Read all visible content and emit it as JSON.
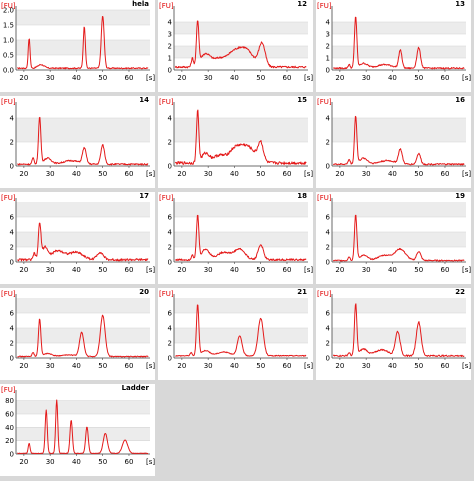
{
  "unit_fu": "[FU]",
  "unit_s": "[s]",
  "chart_data": [
    {
      "type": "line",
      "title": "hela",
      "ylim": [
        0,
        2.0
      ],
      "yticks": [
        "0.0",
        "0.5",
        "1.0",
        "1.5",
        "2.0"
      ],
      "xlim": [
        17,
        68
      ],
      "xticks": [
        "20",
        "30",
        "40",
        "50",
        "60"
      ],
      "baseline": 0.06,
      "noise": 0.02,
      "peaks": [
        [
          22,
          1.0,
          0.35
        ],
        [
          26.5,
          0.12,
          1.2
        ],
        [
          43,
          1.4,
          0.4
        ],
        [
          50,
          1.75,
          0.55
        ]
      ]
    },
    {
      "type": "line",
      "title": "12",
      "ylim": [
        0,
        5
      ],
      "yticks": [
        "0",
        "1",
        "2",
        "3",
        "4"
      ],
      "xlim": [
        17,
        68
      ],
      "xticks": [
        "20",
        "30",
        "40",
        "50",
        "60"
      ],
      "baseline": 0.25,
      "noise": 0.08,
      "peaks": [
        [
          24,
          0.7,
          0.4
        ],
        [
          26,
          3.6,
          0.45
        ],
        [
          29,
          1.1,
          2.0
        ],
        [
          34,
          0.6,
          2.0
        ],
        [
          39,
          0.9,
          2.5
        ],
        [
          44,
          1.5,
          3.0
        ],
        [
          50.5,
          1.9,
          1.2
        ]
      ]
    },
    {
      "type": "line",
      "title": "13",
      "ylim": [
        0,
        5
      ],
      "yticks": [
        "0",
        "1",
        "2",
        "3",
        "4"
      ],
      "xlim": [
        17,
        68
      ],
      "xticks": [
        "20",
        "30",
        "40",
        "50",
        "60"
      ],
      "baseline": 0.15,
      "noise": 0.06,
      "peaks": [
        [
          23.5,
          0.3,
          0.4
        ],
        [
          26,
          4.3,
          0.45
        ],
        [
          29,
          0.4,
          1.5
        ],
        [
          37,
          0.3,
          3.0
        ],
        [
          43,
          1.5,
          0.6
        ],
        [
          50,
          1.7,
          0.7
        ]
      ]
    },
    {
      "type": "line",
      "title": "14",
      "ylim": [
        0,
        5
      ],
      "yticks": [
        "0",
        "2",
        "4"
      ],
      "xlim": [
        17,
        68
      ],
      "xticks": [
        "20",
        "30",
        "40",
        "50",
        "60"
      ],
      "baseline": 0.15,
      "noise": 0.06,
      "peaks": [
        [
          23.5,
          0.5,
          0.4
        ],
        [
          26,
          3.9,
          0.45
        ],
        [
          29,
          0.5,
          1.5
        ],
        [
          38,
          0.3,
          3.0
        ],
        [
          43,
          1.3,
          0.7
        ],
        [
          50,
          1.6,
          0.7
        ]
      ]
    },
    {
      "type": "line",
      "title": "15",
      "ylim": [
        0,
        5
      ],
      "yticks": [
        "0",
        "2",
        "4"
      ],
      "xlim": [
        17,
        68
      ],
      "xticks": [
        "20",
        "30",
        "40",
        "50",
        "60"
      ],
      "baseline": 0.25,
      "noise": 0.12,
      "peaks": [
        [
          26,
          4.3,
          0.45
        ],
        [
          29,
          0.8,
          1.5
        ],
        [
          34,
          0.6,
          2.0
        ],
        [
          40,
          1.0,
          2.5
        ],
        [
          45,
          1.3,
          3.0
        ],
        [
          50,
          1.5,
          1.0
        ]
      ]
    },
    {
      "type": "line",
      "title": "16",
      "ylim": [
        0,
        5
      ],
      "yticks": [
        "0",
        "2",
        "4"
      ],
      "xlim": [
        17,
        68
      ],
      "xticks": [
        "20",
        "30",
        "40",
        "50",
        "60"
      ],
      "baseline": 0.15,
      "noise": 0.06,
      "peaks": [
        [
          23.5,
          0.4,
          0.4
        ],
        [
          26,
          4.0,
          0.45
        ],
        [
          29,
          0.5,
          1.5
        ],
        [
          38,
          0.3,
          3.0
        ],
        [
          43,
          1.2,
          0.7
        ],
        [
          50,
          0.9,
          0.7
        ]
      ]
    },
    {
      "type": "line",
      "title": "17",
      "ylim": [
        0,
        8
      ],
      "yticks": [
        "0",
        "2",
        "4",
        "6"
      ],
      "xlim": [
        17,
        68
      ],
      "xticks": [
        "20",
        "30",
        "40",
        "50",
        "60"
      ],
      "baseline": 0.3,
      "noise": 0.15,
      "peaks": [
        [
          24,
          0.9,
          0.4
        ],
        [
          26,
          4.7,
          0.5
        ],
        [
          28,
          1.6,
          1.0
        ],
        [
          33,
          1.2,
          2.5
        ],
        [
          40,
          1.0,
          2.5
        ],
        [
          49,
          1.0,
          1.2
        ]
      ]
    },
    {
      "type": "line",
      "title": "18",
      "ylim": [
        0,
        8
      ],
      "yticks": [
        "0",
        "2",
        "4",
        "6"
      ],
      "xlim": [
        17,
        68
      ],
      "xticks": [
        "20",
        "30",
        "40",
        "50",
        "60"
      ],
      "baseline": 0.3,
      "noise": 0.12,
      "peaks": [
        [
          24,
          0.7,
          0.4
        ],
        [
          26,
          5.8,
          0.45
        ],
        [
          29,
          1.4,
          1.5
        ],
        [
          36,
          1.0,
          2.5
        ],
        [
          42,
          1.4,
          2.0
        ],
        [
          50,
          2.0,
          1.0
        ]
      ]
    },
    {
      "type": "line",
      "title": "19",
      "ylim": [
        0,
        8
      ],
      "yticks": [
        "0",
        "2",
        "4",
        "6"
      ],
      "xlim": [
        17,
        68
      ],
      "xticks": [
        "20",
        "30",
        "40",
        "50",
        "60"
      ],
      "baseline": 0.2,
      "noise": 0.08,
      "peaks": [
        [
          23.5,
          0.5,
          0.4
        ],
        [
          26,
          6.0,
          0.45
        ],
        [
          29,
          0.7,
          1.5
        ],
        [
          37,
          0.7,
          2.5
        ],
        [
          43,
          1.5,
          2.0
        ],
        [
          50,
          1.2,
          0.8
        ]
      ]
    },
    {
      "type": "line",
      "title": "20",
      "ylim": [
        0,
        8
      ],
      "yticks": [
        "0",
        "2",
        "4",
        "6"
      ],
      "xlim": [
        17,
        68
      ],
      "xticks": [
        "20",
        "30",
        "40",
        "50",
        "60"
      ],
      "baseline": 0.2,
      "noise": 0.06,
      "peaks": [
        [
          23.5,
          0.5,
          0.4
        ],
        [
          26,
          5.0,
          0.45
        ],
        [
          29,
          0.4,
          1.5
        ],
        [
          37,
          0.2,
          3.0
        ],
        [
          42,
          3.2,
          0.8
        ],
        [
          50,
          5.5,
          0.9
        ]
      ]
    },
    {
      "type": "line",
      "title": "21",
      "ylim": [
        0,
        8
      ],
      "yticks": [
        "0",
        "2",
        "4",
        "6"
      ],
      "xlim": [
        17,
        68
      ],
      "xticks": [
        "20",
        "30",
        "40",
        "50",
        "60"
      ],
      "baseline": 0.3,
      "noise": 0.06,
      "peaks": [
        [
          23.5,
          0.4,
          0.4
        ],
        [
          26,
          6.8,
          0.45
        ],
        [
          29,
          0.7,
          1.5
        ],
        [
          36,
          0.5,
          2.5
        ],
        [
          42,
          2.6,
          0.9
        ],
        [
          50,
          5.0,
          1.0
        ]
      ]
    },
    {
      "type": "line",
      "title": "22",
      "ylim": [
        0,
        8
      ],
      "yticks": [
        "0",
        "2",
        "4",
        "6"
      ],
      "xlim": [
        17,
        68
      ],
      "xticks": [
        "20",
        "30",
        "40",
        "50",
        "60"
      ],
      "baseline": 0.3,
      "noise": 0.1,
      "peaks": [
        [
          23.5,
          0.4,
          0.4
        ],
        [
          26,
          6.9,
          0.45
        ],
        [
          29,
          0.9,
          1.5
        ],
        [
          36,
          0.8,
          2.5
        ],
        [
          42,
          3.2,
          0.9
        ],
        [
          50,
          4.5,
          0.9
        ]
      ]
    },
    {
      "type": "line",
      "title": "Ladder",
      "ylim": [
        0,
        90
      ],
      "yticks": [
        "0",
        "20",
        "40",
        "60",
        "80"
      ],
      "xlim": [
        17,
        68
      ],
      "xticks": [
        "20",
        "30",
        "40",
        "50",
        "60"
      ],
      "baseline": 1.0,
      "noise": 0.3,
      "peaks": [
        [
          22,
          15,
          0.35
        ],
        [
          28.5,
          65,
          0.4
        ],
        [
          32.5,
          80,
          0.4
        ],
        [
          38,
          50,
          0.45
        ],
        [
          44,
          40,
          0.5
        ],
        [
          51,
          30,
          0.8
        ],
        [
          58.5,
          20,
          1.0
        ]
      ]
    }
  ]
}
